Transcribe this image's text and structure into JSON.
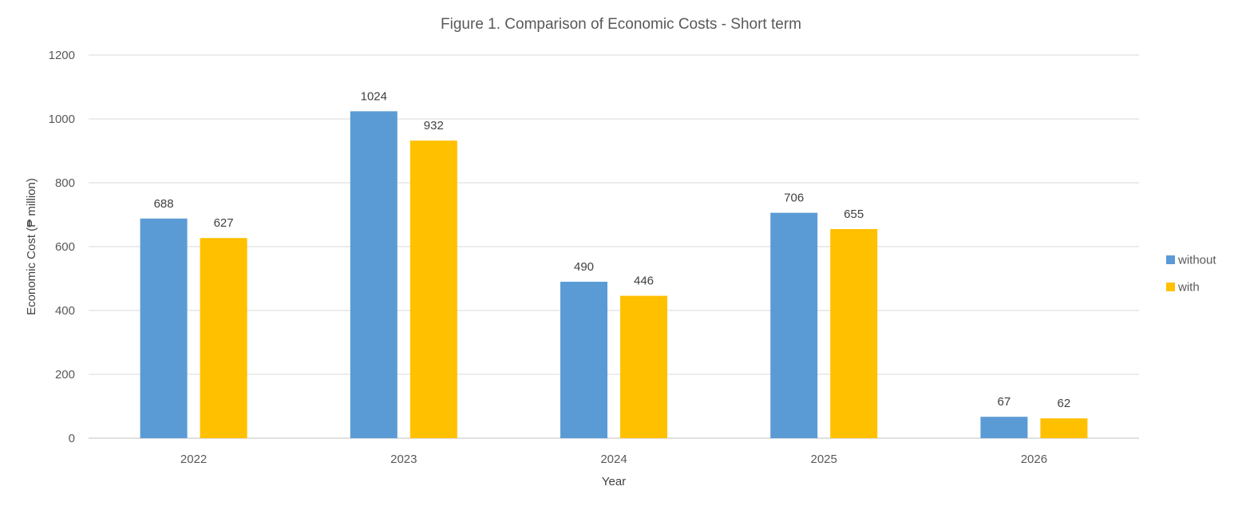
{
  "chart_data": {
    "type": "bar",
    "title": "Figure 1. Comparison  of Economic Costs - Short term",
    "xlabel": "Year",
    "ylabel": "Economic Cost (₱ million)",
    "categories": [
      "2022",
      "2023",
      "2024",
      "2025",
      "2026"
    ],
    "series": [
      {
        "name": "without",
        "color": "#5b9bd5",
        "values": [
          688,
          1024,
          490,
          706,
          67
        ]
      },
      {
        "name": "with",
        "color": "#ffc000",
        "values": [
          627,
          932,
          446,
          655,
          62
        ]
      }
    ],
    "ylim": [
      0,
      1200
    ],
    "yticks": [
      0,
      200,
      400,
      600,
      800,
      1000,
      1200
    ],
    "grid": true,
    "legend_position": "right",
    "data_labels": true
  }
}
